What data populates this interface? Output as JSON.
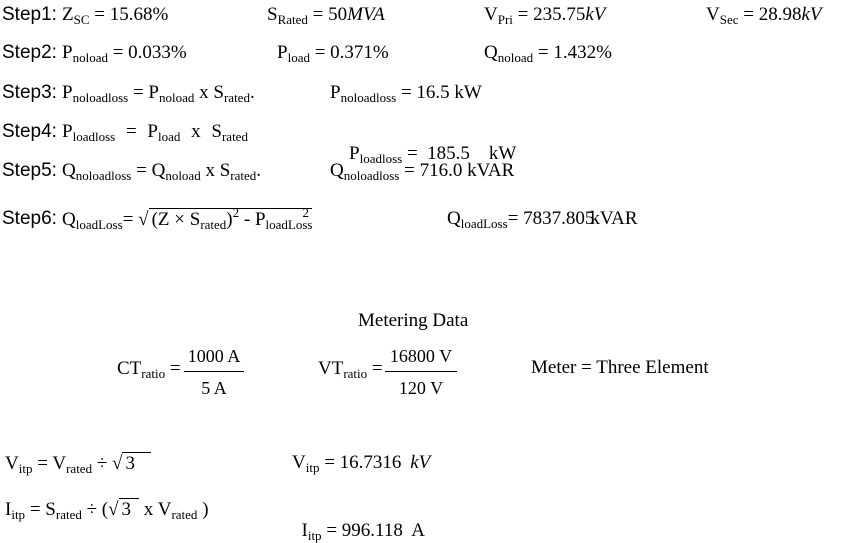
{
  "step1": {
    "label": "Step1:",
    "zsc_sym": "Z",
    "zsc_sub": "SC",
    "zsc_val": "= 15.68%",
    "srated_sym": "S",
    "srated_sub": "Rated",
    "srated_eq": "= 50",
    "srated_unit": "MVA",
    "vpri_sym": "V",
    "vpri_sub": "Pri",
    "vpri_eq": "= 235.75",
    "vpri_unit": "kV",
    "vsec_sym": "V",
    "vsec_sub": "Sec",
    "vsec_eq": "= 28.98",
    "vsec_unit": "kV"
  },
  "step2": {
    "label": "Step2:",
    "pnoload_sym": "P",
    "pnoload_sub": "noload",
    "pnoload_val": "= 0.033%",
    "pload_sym": "P",
    "pload_sub": "load",
    "pload_val": "= 0.371%",
    "qnoload_sym": "Q",
    "qnoload_sub": "noload",
    "qnoload_val": "= 1.432%"
  },
  "step3": {
    "label": "Step3:",
    "lhs_sym": "P",
    "lhs_sub": "noloadloss",
    "eq": "=",
    "a_sym": "P",
    "a_sub": "noload",
    "x": "x",
    "b_sym": "S",
    "b_sub": "rated",
    "dot": ".",
    "res_sym": "P",
    "res_sub": "noloadloss",
    "res_val": "= 16.5 kW"
  },
  "step4": {
    "label": "Step4:",
    "lhs_sym": "P",
    "lhs_sub": "loadloss",
    "eq": "=",
    "a_sym": "P",
    "a_sub": "load",
    "x": "x",
    "b_sym": "S",
    "b_sub": "rated",
    "res_sym": "P",
    "res_sub": "loadloss",
    "res_val": "=  185.5    kW"
  },
  "step5": {
    "label": "Step5:",
    "lhs_sym": "Q",
    "lhs_sub": "noloadloss",
    "eq": "=",
    "a_sym": "Q",
    "a_sub": "noload",
    "x": "x",
    "b_sym": "S",
    "b_sub": "rated",
    "dot": ".",
    "res_sym": "Q",
    "res_sub": "noloadloss",
    "res_val": "= 716.0 kVAR"
  },
  "step6": {
    "label": "Step6:",
    "lhs_sym": "Q",
    "lhs_sub": "loadLoss",
    "eq": "=",
    "rad_open": "(Z × S",
    "rad_sub": "rated",
    "rad_close": ")",
    "pow1": "2",
    "minus": " - P",
    "p_sub": "loadLoss",
    "pow2": "2",
    "res_sym": "Q",
    "res_sub": "loadLoss",
    "res_eq": "= 7837.805",
    "res_unit": "kVAR"
  },
  "metering": {
    "title": "Metering Data",
    "ct_sym": "CT",
    "ct_sub": "ratio",
    "ct_eq": "=",
    "ct_num": "1000 A",
    "ct_den": "5 A",
    "vt_sym": "VT",
    "vt_sub": "ratio",
    "vt_eq": "=",
    "vt_num": "16800 V",
    "vt_den": "120 V",
    "meter": "Meter = Three Element"
  },
  "vitp": {
    "sym": "V",
    "sub": "itp",
    "eq": "=",
    "v_sym": "V",
    "v_sub": "rated",
    "div": "÷",
    "root": "3",
    "res_sym": "V",
    "res_sub": "itp",
    "res_eq": "= 16.7316",
    "res_unit": "kV"
  },
  "iitp": {
    "sym": "I",
    "sub": "itp",
    "eq": "=",
    "s_sym": "S",
    "s_sub": "rated",
    "div": "÷ (",
    "root": "3",
    "x": "x",
    "v_sym": "V",
    "v_sub": "rated",
    "close": ")",
    "res_sym": "I",
    "res_sub": "itp",
    "res_val": "= 996.118  A"
  }
}
